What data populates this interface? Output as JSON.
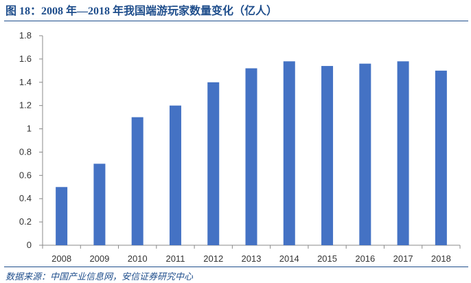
{
  "header": {
    "title": "图 18：2008 年—2018 年我国端游玩家数量变化（亿人）"
  },
  "footer": {
    "source": "数据来源：中国产业信息网，安信证券研究中心"
  },
  "chart_data": {
    "type": "bar",
    "title": "图 18：2008 年—2018 年我国端游玩家数量变化（亿人）",
    "categories": [
      "2008",
      "2009",
      "2010",
      "2011",
      "2012",
      "2013",
      "2014",
      "2015",
      "2016",
      "2017",
      "2018"
    ],
    "values": [
      0.5,
      0.7,
      1.1,
      1.2,
      1.4,
      1.52,
      1.58,
      1.54,
      1.56,
      1.58,
      1.5
    ],
    "y_ticks": [
      "0",
      "0.2",
      "0.4",
      "0.6",
      "0.8",
      "1",
      "1.2",
      "1.4",
      "1.6",
      "1.8"
    ],
    "ylim": [
      0,
      1.8
    ],
    "bar_color": "#4472c4",
    "grid": false,
    "legend": "none"
  }
}
